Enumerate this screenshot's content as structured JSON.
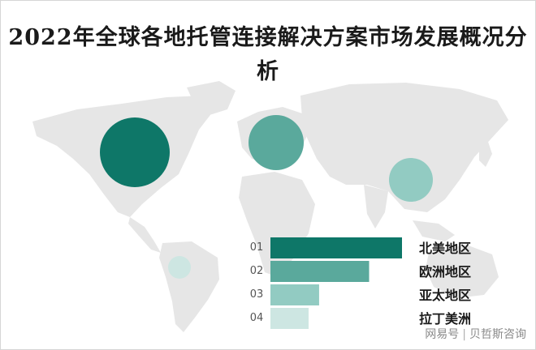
{
  "title": "2022年全球各地托管连接解决方案市场发展概况分析",
  "footer": {
    "source_left": "网易号",
    "source_right": "贝哲斯咨询"
  },
  "chart_data": {
    "type": "bar",
    "orientation": "horizontal",
    "title": "2022年全球各地托管连接解决方案市场发展概况分析",
    "categories": [
      "北美地区",
      "欧洲地区",
      "亚太地区",
      "拉丁美洲"
    ],
    "rank_labels": [
      "01",
      "02",
      "03",
      "04"
    ],
    "values": [
      100,
      75,
      37,
      29
    ],
    "colors": [
      "#0e7768",
      "#5aa99c",
      "#92cbc2",
      "#cde6e2"
    ],
    "bubbles": [
      {
        "region": "北美地区",
        "size": 100
      },
      {
        "region": "欧洲地区",
        "size": 78
      },
      {
        "region": "亚太地区",
        "size": 62
      },
      {
        "region": "拉丁美洲",
        "size": 32
      }
    ]
  }
}
